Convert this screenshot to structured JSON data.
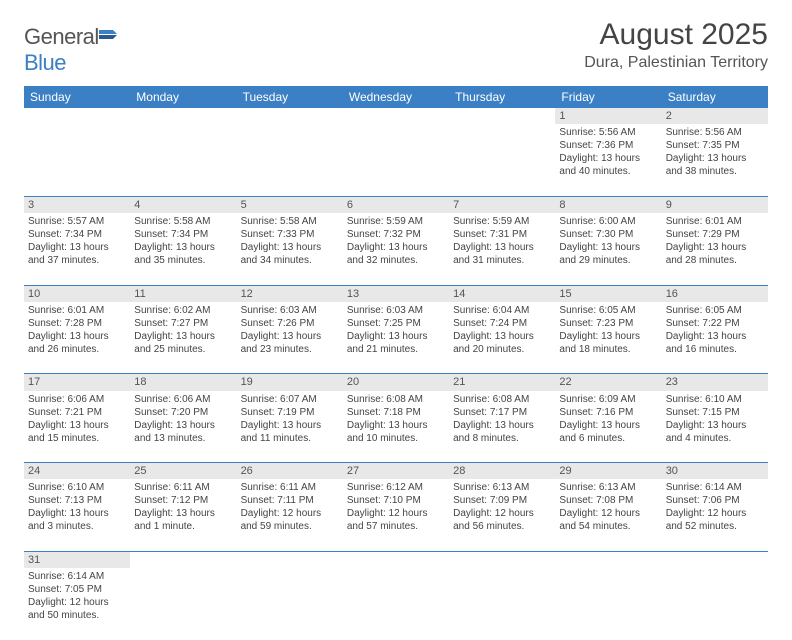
{
  "logo": {
    "part1": "General",
    "part2": "Blue"
  },
  "header": {
    "title": "August 2025",
    "location": "Dura, Palestinian Territory"
  },
  "colors": {
    "headerBg": "#3b7fc4",
    "headerText": "#ffffff",
    "dayNumBg": "#e8e8e8",
    "border": "#3b7fc4",
    "text": "#444444"
  },
  "weekdays": [
    "Sunday",
    "Monday",
    "Tuesday",
    "Wednesday",
    "Thursday",
    "Friday",
    "Saturday"
  ],
  "weeks": [
    [
      null,
      null,
      null,
      null,
      null,
      {
        "n": "1",
        "sunrise": "5:56 AM",
        "sunset": "7:36 PM",
        "day": "13 hours and 40 minutes."
      },
      {
        "n": "2",
        "sunrise": "5:56 AM",
        "sunset": "7:35 PM",
        "day": "13 hours and 38 minutes."
      }
    ],
    [
      {
        "n": "3",
        "sunrise": "5:57 AM",
        "sunset": "7:34 PM",
        "day": "13 hours and 37 minutes."
      },
      {
        "n": "4",
        "sunrise": "5:58 AM",
        "sunset": "7:34 PM",
        "day": "13 hours and 35 minutes."
      },
      {
        "n": "5",
        "sunrise": "5:58 AM",
        "sunset": "7:33 PM",
        "day": "13 hours and 34 minutes."
      },
      {
        "n": "6",
        "sunrise": "5:59 AM",
        "sunset": "7:32 PM",
        "day": "13 hours and 32 minutes."
      },
      {
        "n": "7",
        "sunrise": "5:59 AM",
        "sunset": "7:31 PM",
        "day": "13 hours and 31 minutes."
      },
      {
        "n": "8",
        "sunrise": "6:00 AM",
        "sunset": "7:30 PM",
        "day": "13 hours and 29 minutes."
      },
      {
        "n": "9",
        "sunrise": "6:01 AM",
        "sunset": "7:29 PM",
        "day": "13 hours and 28 minutes."
      }
    ],
    [
      {
        "n": "10",
        "sunrise": "6:01 AM",
        "sunset": "7:28 PM",
        "day": "13 hours and 26 minutes."
      },
      {
        "n": "11",
        "sunrise": "6:02 AM",
        "sunset": "7:27 PM",
        "day": "13 hours and 25 minutes."
      },
      {
        "n": "12",
        "sunrise": "6:03 AM",
        "sunset": "7:26 PM",
        "day": "13 hours and 23 minutes."
      },
      {
        "n": "13",
        "sunrise": "6:03 AM",
        "sunset": "7:25 PM",
        "day": "13 hours and 21 minutes."
      },
      {
        "n": "14",
        "sunrise": "6:04 AM",
        "sunset": "7:24 PM",
        "day": "13 hours and 20 minutes."
      },
      {
        "n": "15",
        "sunrise": "6:05 AM",
        "sunset": "7:23 PM",
        "day": "13 hours and 18 minutes."
      },
      {
        "n": "16",
        "sunrise": "6:05 AM",
        "sunset": "7:22 PM",
        "day": "13 hours and 16 minutes."
      }
    ],
    [
      {
        "n": "17",
        "sunrise": "6:06 AM",
        "sunset": "7:21 PM",
        "day": "13 hours and 15 minutes."
      },
      {
        "n": "18",
        "sunrise": "6:06 AM",
        "sunset": "7:20 PM",
        "day": "13 hours and 13 minutes."
      },
      {
        "n": "19",
        "sunrise": "6:07 AM",
        "sunset": "7:19 PM",
        "day": "13 hours and 11 minutes."
      },
      {
        "n": "20",
        "sunrise": "6:08 AM",
        "sunset": "7:18 PM",
        "day": "13 hours and 10 minutes."
      },
      {
        "n": "21",
        "sunrise": "6:08 AM",
        "sunset": "7:17 PM",
        "day": "13 hours and 8 minutes."
      },
      {
        "n": "22",
        "sunrise": "6:09 AM",
        "sunset": "7:16 PM",
        "day": "13 hours and 6 minutes."
      },
      {
        "n": "23",
        "sunrise": "6:10 AM",
        "sunset": "7:15 PM",
        "day": "13 hours and 4 minutes."
      }
    ],
    [
      {
        "n": "24",
        "sunrise": "6:10 AM",
        "sunset": "7:13 PM",
        "day": "13 hours and 3 minutes."
      },
      {
        "n": "25",
        "sunrise": "6:11 AM",
        "sunset": "7:12 PM",
        "day": "13 hours and 1 minute."
      },
      {
        "n": "26",
        "sunrise": "6:11 AM",
        "sunset": "7:11 PM",
        "day": "12 hours and 59 minutes."
      },
      {
        "n": "27",
        "sunrise": "6:12 AM",
        "sunset": "7:10 PM",
        "day": "12 hours and 57 minutes."
      },
      {
        "n": "28",
        "sunrise": "6:13 AM",
        "sunset": "7:09 PM",
        "day": "12 hours and 56 minutes."
      },
      {
        "n": "29",
        "sunrise": "6:13 AM",
        "sunset": "7:08 PM",
        "day": "12 hours and 54 minutes."
      },
      {
        "n": "30",
        "sunrise": "6:14 AM",
        "sunset": "7:06 PM",
        "day": "12 hours and 52 minutes."
      }
    ],
    [
      {
        "n": "31",
        "sunrise": "6:14 AM",
        "sunset": "7:05 PM",
        "day": "12 hours and 50 minutes."
      },
      null,
      null,
      null,
      null,
      null,
      null
    ]
  ],
  "labels": {
    "sunrise": "Sunrise: ",
    "sunset": "Sunset: ",
    "daylight": "Daylight: "
  }
}
